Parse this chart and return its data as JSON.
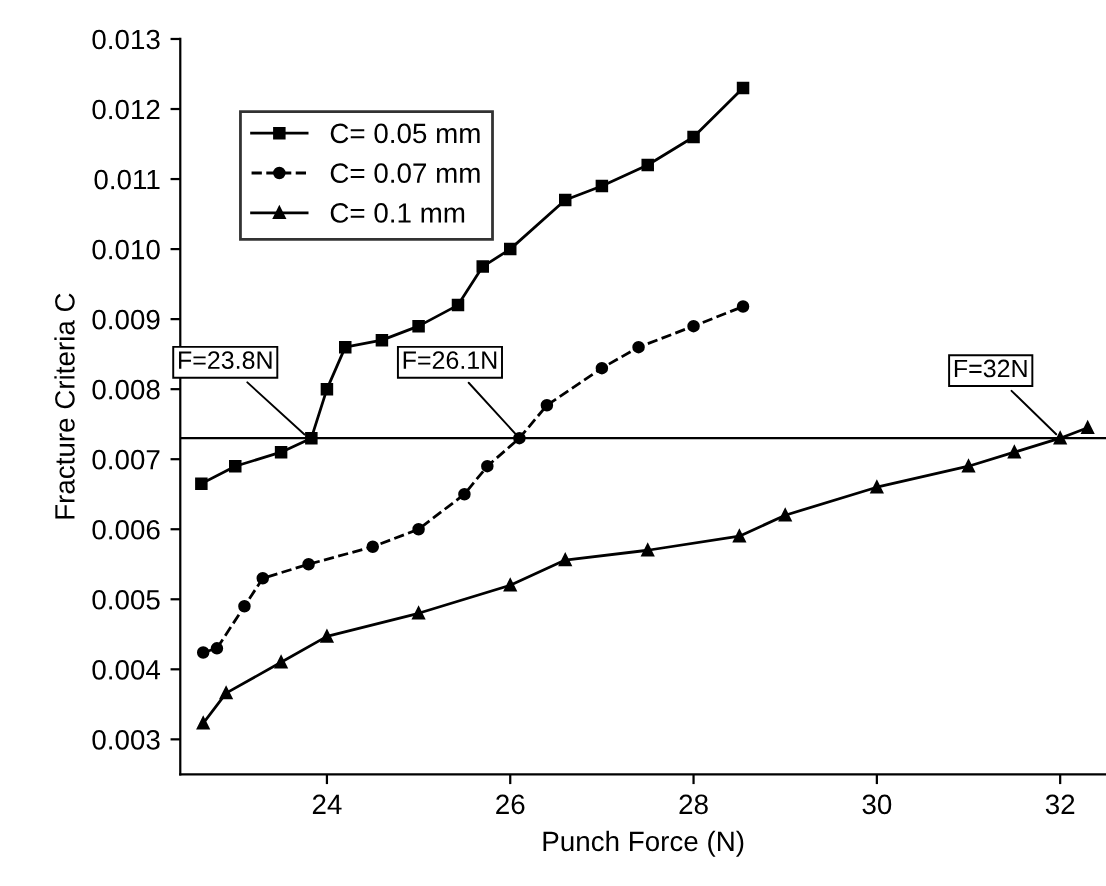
{
  "chart_data": {
    "type": "line",
    "xlabel": "Punch Force (N)",
    "ylabel": "Fracture Criteria C",
    "xlim": [
      22.4,
      32.5
    ],
    "xticks": [
      24,
      26,
      28,
      30,
      32
    ],
    "ylim": [
      0.0025,
      0.013
    ],
    "yticks": [
      {
        "value": 0.003,
        "label": "0.003"
      },
      {
        "value": 0.004,
        "label": "0.004"
      },
      {
        "value": 0.005,
        "label": "0.005"
      },
      {
        "value": 0.006,
        "label": "0.006"
      },
      {
        "value": 0.007,
        "label": "0.007"
      },
      {
        "value": 0.008,
        "label": "0.008"
      },
      {
        "value": 0.009,
        "label": "0.009"
      },
      {
        "value": 0.01,
        "label": "0.010"
      },
      {
        "value": 0.011,
        "label": "0.011"
      },
      {
        "value": 0.012,
        "label": "0.012"
      },
      {
        "value": 0.013,
        "label": "0.013"
      }
    ],
    "grid": false,
    "legend": "top left",
    "series": [
      {
        "name": "C= 0.05 mm",
        "color": "#000000",
        "marker": "square",
        "line_style": "solid",
        "x": [
          22.63,
          23.0,
          23.5,
          23.83,
          24.0,
          24.2,
          24.6,
          25.0,
          25.43,
          25.7,
          26.0,
          26.6,
          27.0,
          27.5,
          28.0,
          28.54
        ],
        "values": [
          0.00665,
          0.0069,
          0.0071,
          0.0073,
          0.008,
          0.0086,
          0.0087,
          0.0089,
          0.0092,
          0.00975,
          0.01,
          0.0107,
          0.0109,
          0.0112,
          0.0116,
          0.0123
        ]
      },
      {
        "name": "C= 0.07 mm",
        "color": "#000000",
        "marker": "circle",
        "line_style": "dashed",
        "x": [
          22.65,
          22.8,
          23.1,
          23.3,
          23.8,
          24.5,
          25.0,
          25.5,
          25.75,
          26.1,
          26.4,
          27.0,
          27.4,
          28.0,
          28.54
        ],
        "values": [
          0.00424,
          0.0043,
          0.0049,
          0.0053,
          0.0055,
          0.00575,
          0.006,
          0.0065,
          0.0069,
          0.0073,
          0.00777,
          0.0083,
          0.0086,
          0.0089,
          0.00918
        ]
      },
      {
        "name": "C= 0.1 mm",
        "color": "#000000",
        "marker": "triangle",
        "line_style": "solid",
        "x": [
          22.65,
          22.9,
          23.5,
          24.0,
          25.0,
          26.0,
          26.6,
          27.5,
          28.5,
          29.0,
          30.0,
          31.0,
          31.5,
          32.0,
          32.3
        ],
        "values": [
          0.00323,
          0.00366,
          0.0041,
          0.00447,
          0.0048,
          0.0052,
          0.00556,
          0.0057,
          0.0059,
          0.0062,
          0.0066,
          0.0069,
          0.0071,
          0.0073,
          0.00745
        ]
      }
    ],
    "ref_lines": [
      {
        "axis": "y",
        "value": 0.0073,
        "color": "#000000"
      }
    ],
    "annotations": [
      {
        "text": "F=23.8N",
        "x": 23.8,
        "y": 0.0073
      },
      {
        "text": "F=26.1N",
        "x": 26.1,
        "y": 0.0073
      },
      {
        "text": "F=32N",
        "x": 32.0,
        "y": 0.0073
      }
    ]
  }
}
